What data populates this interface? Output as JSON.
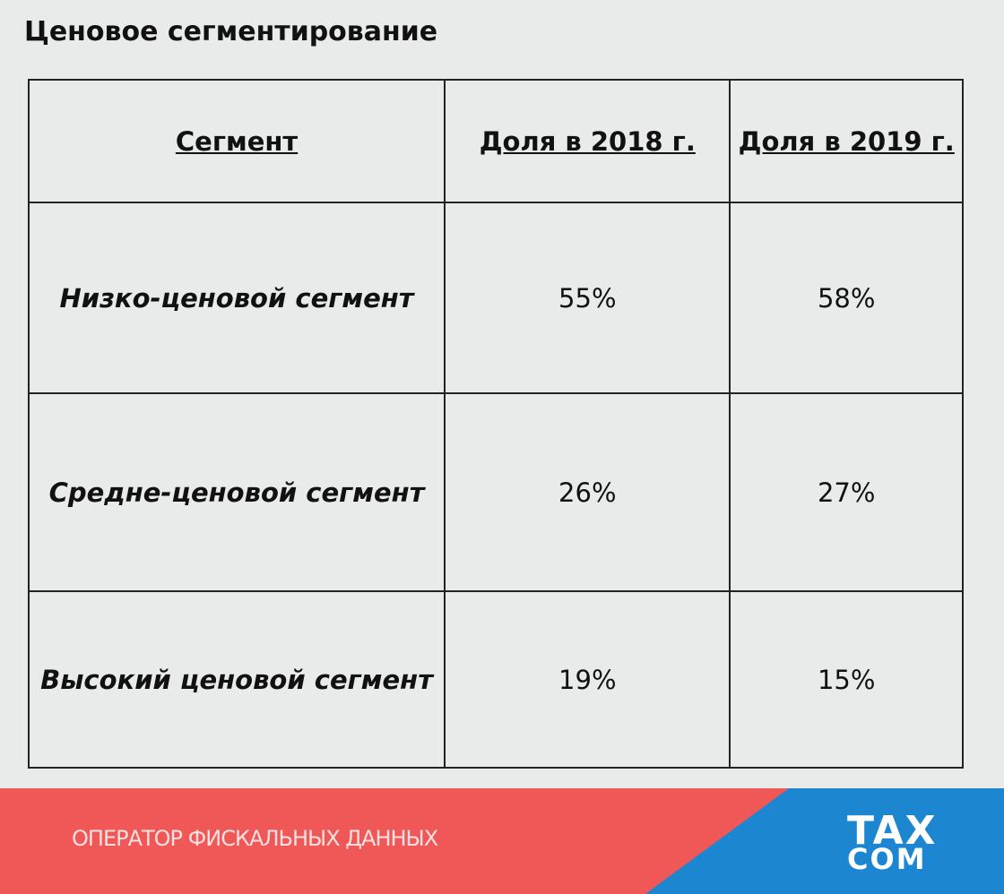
{
  "header": {
    "title": "Ценовое сегментирование"
  },
  "table": {
    "columns": [
      "Сегмент",
      "Доля в 2018 г.",
      "Доля в 2019 г."
    ],
    "rows": [
      [
        "Низко-ценовой сегмент",
        "55%",
        "58%"
      ],
      [
        "Средне-ценовой сегмент",
        "26%",
        "27%"
      ],
      [
        "Высокий ценовой сегмент",
        "19%",
        "15%"
      ]
    ]
  },
  "footer": {
    "text": "ОПЕРАТОР ФИСКАЛЬНЫХ ДАННЫХ",
    "logo_top": "TAX",
    "logo_bottom": "COM"
  }
}
